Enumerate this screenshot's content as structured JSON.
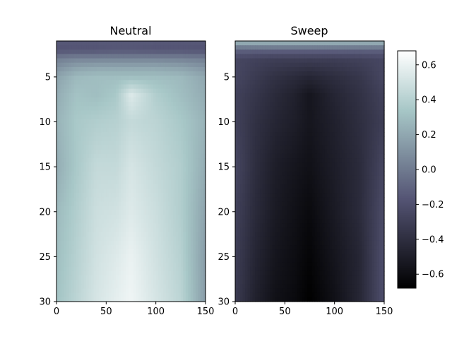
{
  "chart_data": [
    {
      "type": "heatmap",
      "title": "Neutral",
      "xlabel": "",
      "ylabel": "",
      "xlim": [
        0,
        150
      ],
      "ylim": [
        30,
        1
      ],
      "y_inverted": true,
      "xticks": [
        0,
        50,
        100,
        150
      ],
      "yticks": [
        5,
        10,
        15,
        20,
        25,
        30
      ],
      "rows": [
        {
          "y": 1,
          "values": [
            -0.15,
            -0.15,
            -0.15,
            -0.15,
            -0.15,
            -0.15,
            -0.15,
            -0.15
          ]
        },
        {
          "y": 2,
          "values": [
            -0.18,
            -0.17,
            -0.17,
            -0.16,
            -0.16,
            -0.17,
            -0.17,
            -0.18
          ]
        },
        {
          "y": 3,
          "values": [
            0.02,
            0.05,
            0.05,
            0.05,
            0.05,
            0.05,
            0.04,
            0.02
          ]
        },
        {
          "y": 4,
          "values": [
            0.1,
            0.18,
            0.2,
            0.2,
            0.2,
            0.2,
            0.18,
            0.12
          ]
        },
        {
          "y": 5,
          "values": [
            0.18,
            0.28,
            0.3,
            0.3,
            0.3,
            0.3,
            0.28,
            0.2
          ]
        },
        {
          "y": 7,
          "values": [
            0.22,
            0.32,
            0.3,
            0.35,
            0.55,
            0.38,
            0.3,
            0.22
          ]
        },
        {
          "y": 10,
          "values": [
            0.25,
            0.35,
            0.38,
            0.4,
            0.45,
            0.42,
            0.35,
            0.25
          ]
        },
        {
          "y": 15,
          "values": [
            0.22,
            0.35,
            0.45,
            0.45,
            0.52,
            0.45,
            0.38,
            0.22
          ]
        },
        {
          "y": 20,
          "values": [
            0.28,
            0.38,
            0.48,
            0.5,
            0.55,
            0.48,
            0.38,
            0.18
          ]
        },
        {
          "y": 25,
          "values": [
            0.3,
            0.4,
            0.5,
            0.55,
            0.6,
            0.5,
            0.4,
            0.15
          ]
        },
        {
          "y": 30,
          "values": [
            0.32,
            0.42,
            0.52,
            0.58,
            0.62,
            0.52,
            0.42,
            0.15
          ]
        }
      ],
      "x_columns": [
        0,
        20,
        40,
        60,
        75,
        100,
        125,
        150
      ]
    },
    {
      "type": "heatmap",
      "title": "Sweep",
      "xlabel": "",
      "ylabel": "",
      "xlim": [
        0,
        150
      ],
      "ylim": [
        30,
        1
      ],
      "y_inverted": true,
      "xticks": [
        0,
        50,
        100,
        150
      ],
      "yticks": [
        5,
        10,
        15,
        20,
        25,
        30
      ],
      "rows": [
        {
          "y": 1,
          "values": [
            0.3,
            0.3,
            0.3,
            0.3,
            0.3,
            0.3,
            0.3,
            0.3
          ]
        },
        {
          "y": 2,
          "values": [
            -0.1,
            -0.1,
            -0.1,
            -0.1,
            -0.1,
            -0.1,
            -0.1,
            -0.1
          ]
        },
        {
          "y": 3,
          "values": [
            -0.25,
            -0.28,
            -0.3,
            -0.3,
            -0.3,
            -0.3,
            -0.28,
            -0.25
          ]
        },
        {
          "y": 5,
          "values": [
            -0.25,
            -0.32,
            -0.38,
            -0.42,
            -0.45,
            -0.4,
            -0.35,
            -0.25
          ]
        },
        {
          "y": 7,
          "values": [
            -0.28,
            -0.35,
            -0.42,
            -0.48,
            -0.55,
            -0.45,
            -0.38,
            -0.28
          ]
        },
        {
          "y": 10,
          "values": [
            -0.28,
            -0.38,
            -0.45,
            -0.5,
            -0.55,
            -0.48,
            -0.4,
            -0.3
          ]
        },
        {
          "y": 15,
          "values": [
            -0.25,
            -0.4,
            -0.5,
            -0.55,
            -0.58,
            -0.5,
            -0.42,
            -0.25
          ]
        },
        {
          "y": 20,
          "values": [
            -0.28,
            -0.42,
            -0.52,
            -0.58,
            -0.62,
            -0.52,
            -0.42,
            -0.22
          ]
        },
        {
          "y": 25,
          "values": [
            -0.3,
            -0.45,
            -0.55,
            -0.6,
            -0.65,
            -0.55,
            -0.45,
            -0.2
          ]
        },
        {
          "y": 30,
          "values": [
            -0.32,
            -0.48,
            -0.58,
            -0.62,
            -0.68,
            -0.58,
            -0.45,
            -0.2
          ]
        }
      ],
      "x_columns": [
        0,
        20,
        40,
        60,
        75,
        100,
        125,
        150
      ]
    }
  ],
  "colorbar": {
    "colormap": "bone",
    "vmin": -0.68,
    "vmax": 0.68,
    "ticks": [
      0.6,
      0.4,
      0.2,
      0.0,
      -0.2,
      -0.4,
      -0.6
    ],
    "tick_labels": [
      "0.6",
      "0.4",
      "0.2",
      "0.0",
      "−0.2",
      "−0.4",
      "−0.6"
    ]
  },
  "colors": {
    "cmap_stops": [
      "#000000",
      "#545474",
      "#a7c7c7",
      "#ffffff"
    ]
  }
}
